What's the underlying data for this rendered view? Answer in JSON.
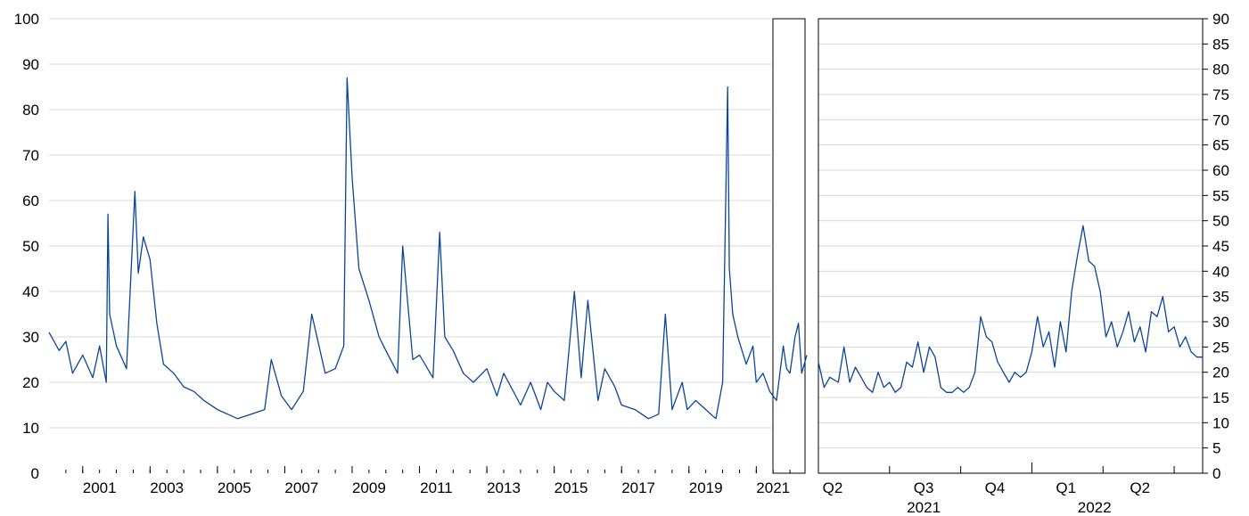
{
  "chart_data": [
    {
      "type": "line",
      "title": "",
      "xlabel": "",
      "ylabel": "",
      "ylim": [
        0,
        100
      ],
      "yticks": [
        "0",
        "10",
        "20",
        "30",
        "40",
        "50",
        "60",
        "70",
        "80",
        "90",
        "100"
      ],
      "xlim": [
        2000.0,
        2022.5
      ],
      "xtick_labels": [
        "2001",
        "2003",
        "2005",
        "2007",
        "2009",
        "2011",
        "2013",
        "2015",
        "2017",
        "2019",
        "2021"
      ],
      "grid": true,
      "series": [
        {
          "color": "#0a4696",
          "x": [
            2000.0,
            2000.3,
            2000.5,
            2000.7,
            2001.0,
            2001.3,
            2001.5,
            2001.7,
            2001.75,
            2001.8,
            2002.0,
            2002.3,
            2002.55,
            2002.65,
            2002.8,
            2003.0,
            2003.2,
            2003.4,
            2003.7,
            2004.0,
            2004.3,
            2004.6,
            2005.0,
            2005.3,
            2005.6,
            2006.0,
            2006.4,
            2006.6,
            2006.9,
            2007.2,
            2007.55,
            2007.8,
            2008.2,
            2008.5,
            2008.75,
            2008.85,
            2009.0,
            2009.2,
            2009.5,
            2009.8,
            2010.0,
            2010.35,
            2010.5,
            2010.8,
            2011.0,
            2011.4,
            2011.6,
            2011.75,
            2012.0,
            2012.3,
            2012.6,
            2013.0,
            2013.3,
            2013.5,
            2014.0,
            2014.3,
            2014.6,
            2014.8,
            2015.0,
            2015.3,
            2015.6,
            2015.8,
            2016.0,
            2016.3,
            2016.5,
            2016.8,
            2017.0,
            2017.4,
            2017.8,
            2018.1,
            2018.3,
            2018.5,
            2018.8,
            2018.95,
            2019.2,
            2019.5,
            2019.8,
            2020.0,
            2020.15,
            2020.2,
            2020.3,
            2020.45,
            2020.7,
            2020.9,
            2021.0,
            2021.2,
            2021.4,
            2021.6,
            2021.8,
            2021.9,
            2022.0,
            2022.15,
            2022.25,
            2022.35,
            2022.5
          ],
          "y": [
            31,
            27,
            29,
            22,
            26,
            21,
            28,
            20,
            57,
            35,
            28,
            23,
            62,
            44,
            52,
            47,
            33,
            24,
            22,
            19,
            18,
            16,
            14,
            13,
            12,
            13,
            14,
            25,
            17,
            14,
            18,
            35,
            22,
            23,
            28,
            87,
            65,
            45,
            38,
            30,
            27,
            22,
            50,
            25,
            26,
            21,
            53,
            30,
            27,
            22,
            20,
            23,
            17,
            22,
            15,
            20,
            14,
            20,
            18,
            16,
            40,
            21,
            38,
            16,
            23,
            19,
            15,
            14,
            12,
            13,
            35,
            14,
            20,
            14,
            16,
            14,
            12,
            20,
            85,
            45,
            35,
            30,
            24,
            28,
            20,
            22,
            18,
            16,
            28,
            23,
            22,
            30,
            33,
            22,
            26
          ]
        }
      ]
    },
    {
      "type": "line",
      "title": "",
      "xlabel": "",
      "ylabel": "",
      "ylim": [
        0,
        90
      ],
      "yticks": [
        "0",
        "5",
        "10",
        "15",
        "20",
        "25",
        "30",
        "35",
        "40",
        "45",
        "50",
        "55",
        "60",
        "65",
        "70",
        "75",
        "80",
        "85",
        "90"
      ],
      "xtick_labels": [
        "Q2",
        "Q3",
        "Q4",
        "Q1",
        "Q2"
      ],
      "year_labels": [
        "2021",
        "2022"
      ],
      "xlim": [
        2021.25,
        2022.6
      ],
      "grid": true,
      "series": [
        {
          "color": "#0a4696",
          "x": [
            2021.25,
            2021.27,
            2021.29,
            2021.32,
            2021.34,
            2021.36,
            2021.38,
            2021.4,
            2021.42,
            2021.44,
            2021.46,
            2021.48,
            2021.5,
            2021.52,
            2021.54,
            2021.56,
            2021.58,
            2021.6,
            2021.62,
            2021.64,
            2021.66,
            2021.68,
            2021.7,
            2021.72,
            2021.74,
            2021.76,
            2021.78,
            2021.8,
            2021.82,
            2021.84,
            2021.86,
            2021.88,
            2021.9,
            2021.92,
            2021.94,
            2021.96,
            2021.98,
            2022.0,
            2022.02,
            2022.04,
            2022.06,
            2022.08,
            2022.1,
            2022.12,
            2022.14,
            2022.16,
            2022.18,
            2022.2,
            2022.22,
            2022.24,
            2022.26,
            2022.28,
            2022.3,
            2022.32,
            2022.34,
            2022.36,
            2022.38,
            2022.4,
            2022.42,
            2022.44,
            2022.46,
            2022.48,
            2022.5,
            2022.52,
            2022.54,
            2022.56,
            2022.58,
            2022.6
          ],
          "y": [
            22,
            17,
            19,
            18,
            25,
            18,
            21,
            19,
            17,
            16,
            20,
            17,
            18,
            16,
            17,
            22,
            21,
            26,
            20,
            25,
            23,
            17,
            16,
            16,
            17,
            16,
            17,
            20,
            31,
            27,
            26,
            22,
            20,
            18,
            20,
            19,
            20,
            24,
            31,
            25,
            28,
            21,
            30,
            24,
            36,
            43,
            49,
            42,
            41,
            36,
            27,
            30,
            25,
            28,
            32,
            26,
            29,
            24,
            32,
            31,
            35,
            28,
            29,
            25,
            27,
            24,
            23,
            23
          ]
        }
      ]
    }
  ]
}
